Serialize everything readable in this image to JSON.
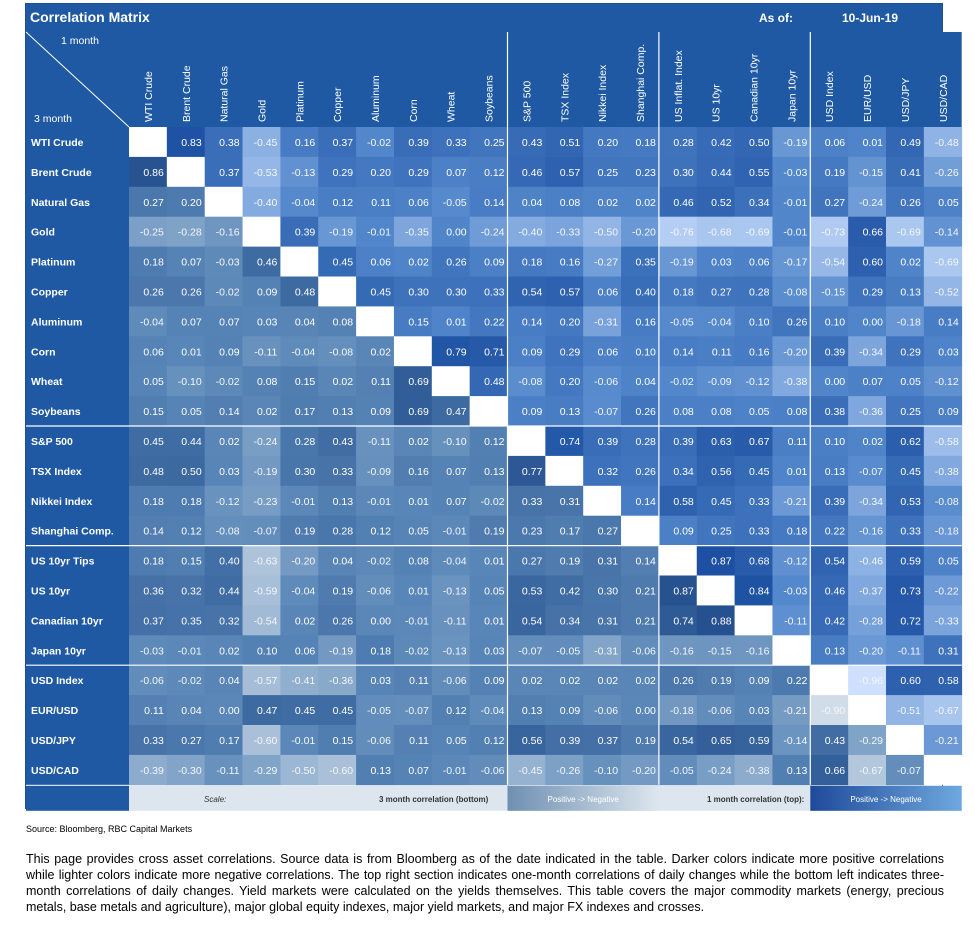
{
  "header": {
    "title": "Correlation Matrix",
    "as_of_label": "As of:",
    "as_of_date": "10-Jun-19",
    "corner_top": "1 month",
    "corner_bottom": "3 month"
  },
  "colors": {
    "header_blue": "#1f59a3",
    "cell_dark": "#1f4a8a",
    "cell_mid": "#5a87b8",
    "cell_light": "#dde6ee",
    "diagonal": "#ffffff",
    "scale_bar": "#dde6ee"
  },
  "chart_data": {
    "type": "heatmap",
    "title": "Correlation Matrix",
    "description_top": "1 month",
    "description_bottom": "3 month",
    "categories": [
      "WTI Crude",
      "Brent Crude",
      "Natural Gas",
      "Gold",
      "Platinum",
      "Copper",
      "Aluminum",
      "Corn",
      "Wheat",
      "Soybeans",
      "S&P 500",
      "TSX Index",
      "Nikkei Index",
      "Shanghai Comp.",
      "US Inflat. Index",
      "US 10yr",
      "Canadian 10yr",
      "Japan 10yr",
      "USD Index",
      "EUR/USD",
      "USD/JPY",
      "USD/CAD"
    ],
    "row_labels": [
      "WTI Crude",
      "Brent Crude",
      "Natural Gas",
      "Gold",
      "Platinum",
      "Copper",
      "Aluminum",
      "Corn",
      "Wheat",
      "Soybeans",
      "S&P 500",
      "TSX Index",
      "Nikkei Index",
      "Shanghai Comp.",
      "US 10yr Tips",
      "US 10yr",
      "Canadian 10yr",
      "Japan 10yr",
      "USD Index",
      "EUR/USD",
      "USD/JPY",
      "USD/CAD"
    ],
    "values": [
      [
        null,
        0.83,
        0.38,
        -0.45,
        0.16,
        0.37,
        -0.02,
        0.39,
        0.33,
        0.25,
        0.43,
        0.51,
        0.2,
        0.18,
        0.28,
        0.42,
        0.5,
        -0.19,
        0.06,
        0.01,
        0.49,
        -0.48
      ],
      [
        0.86,
        null,
        0.37,
        -0.53,
        -0.13,
        0.29,
        0.2,
        0.29,
        0.07,
        0.12,
        0.46,
        0.57,
        0.25,
        0.23,
        0.3,
        0.44,
        0.55,
        -0.03,
        0.19,
        -0.15,
        0.41,
        -0.26
      ],
      [
        0.27,
        0.2,
        null,
        -0.4,
        -0.04,
        0.12,
        0.11,
        0.06,
        -0.05,
        0.14,
        0.04,
        0.08,
        0.02,
        0.02,
        0.46,
        0.52,
        0.34,
        -0.01,
        0.27,
        -0.24,
        0.26,
        0.05
      ],
      [
        -0.25,
        -0.28,
        -0.16,
        null,
        0.39,
        -0.19,
        -0.01,
        -0.35,
        0.0,
        -0.24,
        -0.4,
        -0.33,
        -0.5,
        -0.2,
        -0.76,
        -0.68,
        -0.69,
        -0.01,
        -0.73,
        0.66,
        -0.69,
        -0.14
      ],
      [
        0.18,
        0.07,
        -0.03,
        0.46,
        null,
        0.45,
        0.06,
        0.02,
        0.26,
        0.09,
        0.18,
        0.16,
        -0.27,
        0.35,
        -0.19,
        0.03,
        0.06,
        -0.17,
        -0.54,
        0.6,
        0.02,
        -0.69
      ],
      [
        0.26,
        0.26,
        -0.02,
        0.09,
        0.48,
        null,
        0.45,
        0.3,
        0.3,
        0.33,
        0.54,
        0.57,
        0.06,
        0.4,
        0.18,
        0.27,
        0.28,
        -0.08,
        -0.15,
        0.29,
        0.13,
        -0.52
      ],
      [
        -0.04,
        0.07,
        0.07,
        0.03,
        0.04,
        0.08,
        null,
        0.15,
        0.01,
        0.22,
        0.14,
        0.2,
        -0.31,
        0.16,
        -0.05,
        -0.04,
        0.1,
        0.26,
        0.1,
        0.0,
        -0.18,
        0.14
      ],
      [
        0.06,
        0.01,
        0.09,
        -0.11,
        -0.04,
        -0.08,
        0.02,
        null,
        0.79,
        0.71,
        0.09,
        0.29,
        0.06,
        0.1,
        0.14,
        0.11,
        0.16,
        -0.2,
        0.39,
        -0.34,
        0.29,
        0.03
      ],
      [
        0.05,
        -0.1,
        -0.02,
        0.08,
        0.15,
        0.02,
        0.11,
        0.69,
        null,
        0.48,
        -0.08,
        0.2,
        -0.06,
        0.04,
        -0.02,
        -0.09,
        -0.12,
        -0.38,
        0.0,
        0.07,
        0.05,
        -0.12
      ],
      [
        0.15,
        0.05,
        0.14,
        0.02,
        0.17,
        0.13,
        0.09,
        0.69,
        0.47,
        null,
        0.09,
        0.13,
        -0.07,
        0.26,
        0.08,
        0.08,
        0.05,
        0.08,
        0.38,
        -0.36,
        0.25,
        0.09
      ],
      [
        0.45,
        0.44,
        0.02,
        -0.24,
        0.28,
        0.43,
        -0.11,
        0.02,
        -0.1,
        0.12,
        null,
        0.74,
        0.39,
        0.28,
        0.39,
        0.63,
        0.67,
        0.11,
        0.1,
        0.02,
        0.62,
        -0.58
      ],
      [
        0.48,
        0.5,
        0.03,
        -0.19,
        0.3,
        0.33,
        -0.09,
        0.16,
        0.07,
        0.13,
        0.77,
        null,
        0.32,
        0.26,
        0.34,
        0.56,
        0.45,
        0.01,
        0.13,
        -0.07,
        0.45,
        -0.38
      ],
      [
        0.18,
        0.18,
        -0.12,
        -0.23,
        -0.01,
        0.13,
        -0.01,
        0.01,
        0.07,
        -0.02,
        0.33,
        0.31,
        null,
        0.14,
        0.58,
        0.45,
        0.33,
        -0.21,
        0.39,
        -0.34,
        0.53,
        -0.08
      ],
      [
        0.14,
        0.12,
        -0.08,
        -0.07,
        0.19,
        0.28,
        0.12,
        0.05,
        -0.01,
        0.19,
        0.23,
        0.17,
        0.27,
        null,
        0.09,
        0.25,
        0.33,
        0.18,
        0.22,
        -0.16,
        0.33,
        -0.18
      ],
      [
        0.18,
        0.15,
        0.4,
        -0.63,
        -0.2,
        0.04,
        -0.02,
        0.08,
        -0.04,
        0.01,
        0.27,
        0.19,
        0.31,
        0.14,
        null,
        0.87,
        0.68,
        -0.12,
        0.54,
        -0.46,
        0.59,
        0.05
      ],
      [
        0.36,
        0.32,
        0.44,
        -0.59,
        -0.04,
        0.19,
        -0.06,
        0.01,
        -0.13,
        0.05,
        0.53,
        0.42,
        0.3,
        0.21,
        0.87,
        null,
        0.84,
        -0.03,
        0.46,
        -0.37,
        0.73,
        -0.22
      ],
      [
        0.37,
        0.35,
        0.32,
        -0.54,
        0.02,
        0.26,
        0.0,
        -0.01,
        -0.11,
        0.01,
        0.54,
        0.34,
        0.31,
        0.21,
        0.74,
        0.88,
        null,
        -0.11,
        0.42,
        -0.28,
        0.72,
        -0.33
      ],
      [
        -0.03,
        -0.01,
        0.02,
        0.1,
        0.06,
        -0.19,
        0.18,
        -0.02,
        -0.13,
        0.03,
        -0.07,
        -0.05,
        -0.31,
        -0.06,
        -0.16,
        -0.15,
        -0.16,
        null,
        0.13,
        -0.2,
        -0.11,
        0.31
      ],
      [
        -0.06,
        -0.02,
        0.04,
        -0.57,
        -0.41,
        -0.36,
        0.03,
        0.11,
        -0.06,
        0.09,
        0.02,
        0.02,
        0.02,
        0.02,
        0.26,
        0.19,
        0.09,
        0.22,
        null,
        -0.96,
        0.6,
        0.58
      ],
      [
        0.11,
        0.04,
        0.0,
        0.47,
        0.45,
        0.45,
        -0.05,
        -0.07,
        0.12,
        -0.04,
        0.13,
        0.09,
        -0.06,
        0.0,
        -0.18,
        -0.06,
        0.03,
        -0.21,
        -0.9,
        null,
        -0.51,
        -0.67
      ],
      [
        0.33,
        0.27,
        0.17,
        -0.6,
        -0.01,
        0.15,
        -0.06,
        0.11,
        0.05,
        0.12,
        0.56,
        0.39,
        0.37,
        0.19,
        0.54,
        0.65,
        0.59,
        -0.14,
        0.43,
        -0.29,
        null,
        -0.21
      ],
      [
        -0.39,
        -0.3,
        -0.11,
        -0.29,
        -0.5,
        -0.6,
        0.13,
        0.07,
        -0.01,
        -0.06,
        -0.45,
        -0.26,
        -0.1,
        -0.2,
        -0.05,
        -0.24,
        -0.38,
        0.13,
        0.66,
        -0.67,
        -0.07,
        null
      ]
    ],
    "zlim": [
      -1,
      1
    ],
    "legend": {
      "scale_label": "Scale:",
      "bottom_label": "3 month correlation (bottom)",
      "bottom_range": "Positive -> Negative",
      "top_label": "1 month correlation (top):",
      "top_range": "Positive -> Negative"
    }
  },
  "footer": {
    "source": "Source: Bloomberg, RBC Capital Markets",
    "note": "This page provides cross asset correlations. Source data is from Bloomberg as of the date indicated in the table. Darker colors indicate more positive correlations while lighter colors indicate more negative correlations. The top right section indicates one-month correlations of daily changes while the bottom left indicates three-month correlations of daily changes. Yield markets were calculated on the yields themselves. This table covers the major commodity markets (energy, precious metals, base metals and agriculture), major global equity indexes, major yield markets, and major FX indexes and crosses."
  }
}
